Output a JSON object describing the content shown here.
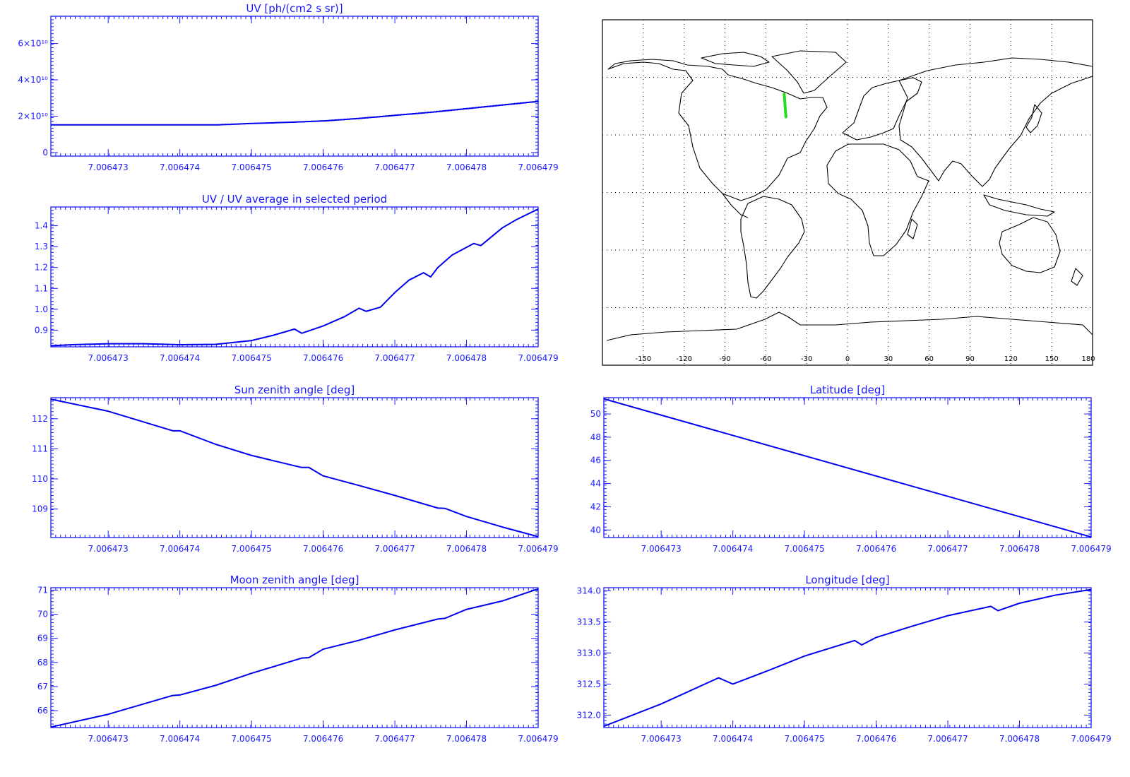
{
  "chart_data": [
    {
      "type": "line",
      "title": "UV [ph/(cm2 s sr)]",
      "x_ticks": [
        "7.006473",
        "7.006474",
        "7.006475",
        "7.006476",
        "7.006477",
        "7.006478",
        "7.006479"
      ],
      "y_ticks": [
        "0",
        "2×10¹⁰",
        "4×10¹⁰",
        "6×10¹⁰"
      ],
      "y_tick_values": [
        0,
        20000000000.0,
        40000000000.0,
        60000000000.0
      ],
      "xlim": [
        7.0064722,
        7.006479
      ],
      "ylim": [
        -2000000000.0,
        75000000000.0
      ],
      "step": true,
      "series": [
        {
          "x": [
            7.0064722,
            7.0064745,
            7.006475,
            7.0064755,
            7.006476,
            7.0064765,
            7.006477,
            7.0064775,
            7.006478,
            7.0064785,
            7.006479
          ],
          "y": [
            15200000000.0,
            15200000000.0,
            16000000000.0,
            16600000000.0,
            17400000000.0,
            18800000000.0,
            20500000000.0,
            22200000000.0,
            24200000000.0,
            26200000000.0,
            28200000000.0
          ]
        }
      ]
    },
    {
      "type": "line",
      "title": "UV / UV average in selected period",
      "x_ticks": [
        "7.006473",
        "7.006474",
        "7.006475",
        "7.006476",
        "7.006477",
        "7.006478",
        "7.006479"
      ],
      "y_ticks": [
        "0.9",
        "1.0",
        "1.1",
        "1.2",
        "1.3",
        "1.4"
      ],
      "y_tick_values": [
        0.9,
        1.0,
        1.1,
        1.2,
        1.3,
        1.4
      ],
      "xlim": [
        7.0064722,
        7.006479
      ],
      "ylim": [
        0.82,
        1.49
      ],
      "series": [
        {
          "x": [
            7.0064722,
            7.0064725,
            7.006473,
            7.0064735,
            7.006474,
            7.0064745,
            7.006475,
            7.0064753,
            7.0064756,
            7.0064757,
            7.006476,
            7.0064763,
            7.0064765,
            7.0064766,
            7.0064768,
            7.006477,
            7.0064772,
            7.0064774,
            7.0064775,
            7.0064776,
            7.0064778,
            7.0064781,
            7.0064782,
            7.0064785,
            7.0064787,
            7.006479
          ],
          "y": [
            0.825,
            0.83,
            0.835,
            0.835,
            0.83,
            0.832,
            0.85,
            0.875,
            0.905,
            0.885,
            0.92,
            0.965,
            1.005,
            0.99,
            1.01,
            1.08,
            1.14,
            1.175,
            1.155,
            1.2,
            1.26,
            1.315,
            1.305,
            1.39,
            1.43,
            1.48
          ]
        }
      ]
    },
    {
      "type": "line",
      "title": "Sun zenith angle [deg]",
      "x_ticks": [
        "7.006473",
        "7.006474",
        "7.006475",
        "7.006476",
        "7.006477",
        "7.006478",
        "7.006479"
      ],
      "y_ticks": [
        "109",
        "110",
        "111",
        "112"
      ],
      "y_tick_values": [
        109,
        110,
        111,
        112
      ],
      "xlim": [
        7.0064722,
        7.006479
      ],
      "ylim": [
        108.05,
        112.7
      ],
      "series": [
        {
          "x": [
            7.0064722,
            7.006473,
            7.0064739,
            7.006474,
            7.0064745,
            7.006475,
            7.0064757,
            7.0064758,
            7.006476,
            7.0064765,
            7.006477,
            7.0064776,
            7.0064777,
            7.006478,
            7.0064785,
            7.006479
          ],
          "y": [
            112.65,
            112.25,
            111.6,
            111.6,
            111.15,
            110.78,
            110.38,
            110.38,
            110.1,
            109.78,
            109.45,
            109.03,
            109.02,
            108.75,
            108.4,
            108.08
          ]
        }
      ]
    },
    {
      "type": "line",
      "title": "Latitude [deg]",
      "x_ticks": [
        "7.006473",
        "7.006474",
        "7.006475",
        "7.006476",
        "7.006477",
        "7.006478",
        "7.006479"
      ],
      "y_ticks": [
        "40",
        "42",
        "44",
        "46",
        "48",
        "50"
      ],
      "y_tick_values": [
        40,
        42,
        44,
        46,
        48,
        50
      ],
      "xlim": [
        7.0064722,
        7.006479
      ],
      "ylim": [
        39.35,
        51.4
      ],
      "series": [
        {
          "x": [
            7.0064722,
            7.006479
          ],
          "y": [
            51.3,
            39.4
          ]
        }
      ]
    },
    {
      "type": "line",
      "title": "Moon zenith angle [deg]",
      "x_ticks": [
        "7.006473",
        "7.006474",
        "7.006475",
        "7.006476",
        "7.006477",
        "7.006478",
        "7.006479"
      ],
      "y_ticks": [
        "66",
        "67",
        "68",
        "69",
        "70",
        "71"
      ],
      "y_tick_values": [
        66,
        67,
        68,
        69,
        70,
        71
      ],
      "xlim": [
        7.0064722,
        7.006479
      ],
      "ylim": [
        65.3,
        71.1
      ],
      "series": [
        {
          "x": [
            7.0064722,
            7.006473,
            7.0064739,
            7.006474,
            7.0064745,
            7.006475,
            7.0064757,
            7.0064758,
            7.006476,
            7.0064765,
            7.006477,
            7.0064776,
            7.0064777,
            7.006478,
            7.0064785,
            7.006479
          ],
          "y": [
            65.32,
            65.85,
            66.63,
            66.65,
            67.05,
            67.55,
            68.18,
            68.2,
            68.55,
            68.92,
            69.35,
            69.8,
            69.83,
            70.2,
            70.55,
            71.05
          ]
        }
      ]
    },
    {
      "type": "line",
      "title": "Longitude [deg]",
      "x_ticks": [
        "7.006473",
        "7.006474",
        "7.006475",
        "7.006476",
        "7.006477",
        "7.006478",
        "7.006479"
      ],
      "y_ticks": [
        "312.0",
        "312.5",
        "313.0",
        "313.5",
        "314.0"
      ],
      "y_tick_values": [
        312.0,
        312.5,
        313.0,
        313.5,
        314.0
      ],
      "xlim": [
        7.0064722,
        7.006479
      ],
      "ylim": [
        311.8,
        314.05
      ],
      "series": [
        {
          "x": [
            7.0064722,
            7.006473,
            7.0064738,
            7.0064739,
            7.006474,
            7.0064745,
            7.006475,
            7.0064757,
            7.0064758,
            7.006476,
            7.0064765,
            7.006477,
            7.0064776,
            7.0064777,
            7.006478,
            7.0064785,
            7.006479
          ],
          "y": [
            311.82,
            312.18,
            312.6,
            312.55,
            312.5,
            312.72,
            312.95,
            313.2,
            313.13,
            313.25,
            313.43,
            313.6,
            313.75,
            313.68,
            313.8,
            313.93,
            314.02
          ]
        }
      ]
    }
  ],
  "map": {
    "lon_ticks": [
      "-150",
      "-120",
      "-90",
      "-60",
      "-30",
      "0",
      "30",
      "60",
      "90",
      "120",
      "150",
      "180"
    ],
    "track_lon": [
      -46.5,
      -45.2
    ],
    "track_lat": [
      51.3,
      39.4
    ]
  }
}
